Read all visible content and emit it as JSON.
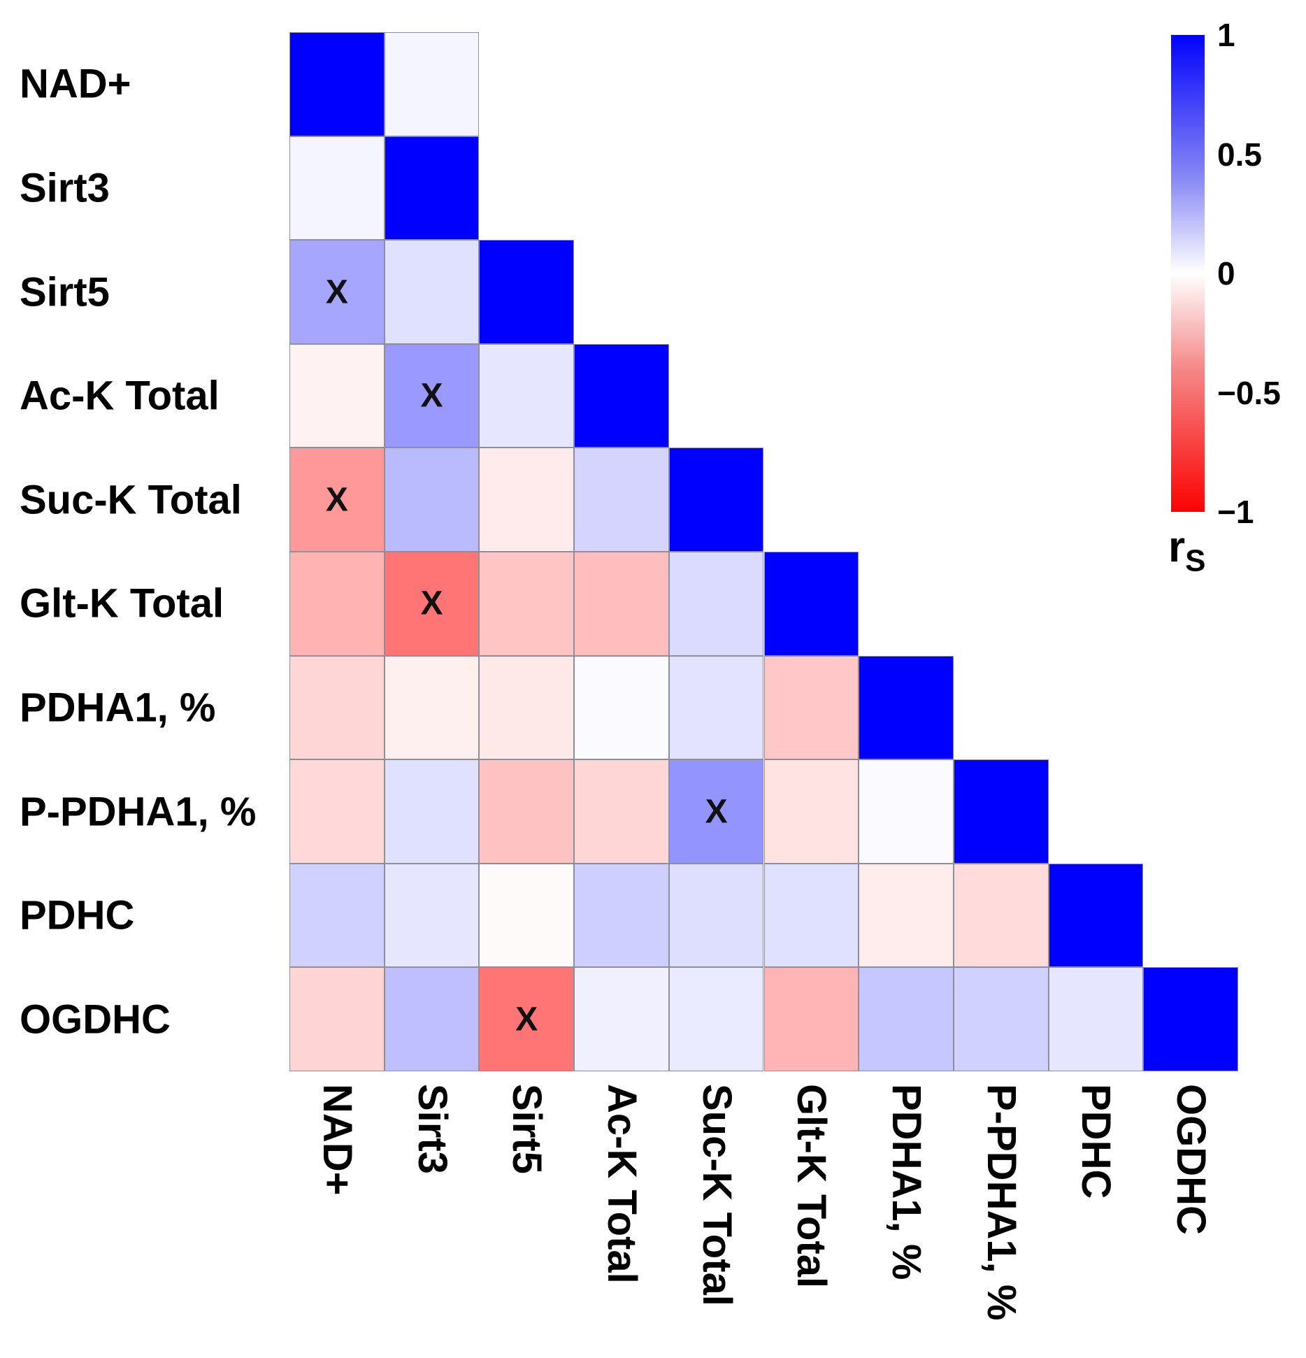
{
  "figure": {
    "kind": "correlation-heatmap",
    "background": "#ffffff",
    "grid_line_color": "#8e8e99",
    "significance_symbol": "X",
    "colorbar": {
      "title_main": "r",
      "title_sub": "S",
      "ticks": [
        "1",
        "0.5",
        "0",
        "−0.5",
        "−1"
      ],
      "tick_values": [
        1,
        0.5,
        0,
        -0.5,
        -1
      ],
      "max_color": "#0000FF",
      "mid_color": "#FFFFFF",
      "min_color": "#FF0000"
    }
  },
  "chart_data": {
    "type": "heatmap",
    "title": "",
    "xlabel": "",
    "ylabel": "",
    "legend_label": "rS",
    "value_range": [
      -1,
      1
    ],
    "colormap": "blue-white-red",
    "categories": [
      "NAD+",
      "Sirt3",
      "Sirt5",
      "Ac-K Total",
      "Suc-K Total",
      "Glt-K Total",
      "PDHA1, %",
      "P-PDHA1, %",
      "PDHC",
      "OGDHC"
    ],
    "matrix_shape": "lower-triangle-plus-first-pair",
    "values": [
      [
        1,
        0.04
      ],
      [
        0.04,
        1
      ],
      [
        0.35,
        0.12,
        1
      ],
      [
        -0.05,
        0.4,
        0.1,
        1
      ],
      [
        -0.4,
        0.27,
        -0.08,
        0.17,
        1
      ],
      [
        -0.3,
        -0.54,
        -0.23,
        -0.26,
        0.14,
        1
      ],
      [
        -0.16,
        -0.06,
        -0.09,
        0.02,
        0.11,
        -0.22,
        1
      ],
      [
        -0.15,
        0.12,
        -0.24,
        -0.16,
        0.42,
        -0.11,
        0.02,
        1
      ],
      [
        0.18,
        0.1,
        -0.02,
        0.19,
        0.13,
        0.12,
        -0.07,
        -0.14,
        1
      ],
      [
        -0.17,
        0.25,
        -0.54,
        0.06,
        0.08,
        -0.29,
        0.22,
        0.18,
        0.1,
        1
      ]
    ],
    "significant_cells_row_col": [
      [
        2,
        0
      ],
      [
        3,
        1
      ],
      [
        4,
        0
      ],
      [
        5,
        1
      ],
      [
        7,
        4
      ],
      [
        9,
        2
      ]
    ]
  }
}
